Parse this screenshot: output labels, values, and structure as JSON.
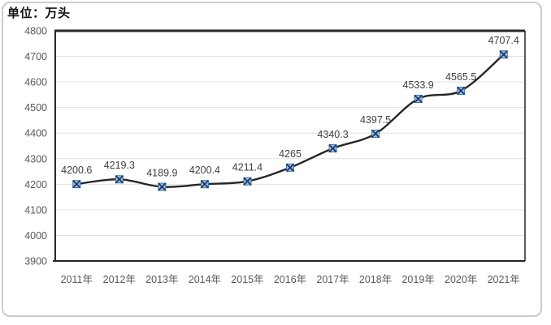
{
  "unit_label": "单位：万头",
  "frame": {
    "border_color": "#cccccc",
    "background": "#ffffff"
  },
  "chart_data": {
    "type": "line",
    "title": "单位：万头",
    "categories": [
      "2011年",
      "2012年",
      "2013年",
      "2014年",
      "2015年",
      "2016年",
      "2017年",
      "2018年",
      "2019年",
      "2020年",
      "2021年"
    ],
    "values": [
      4200.6,
      4219.3,
      4189.9,
      4200.4,
      4211.4,
      4265,
      4340.3,
      4397.5,
      4533.9,
      4565.5,
      4707.4
    ],
    "data_labels": [
      "4200.6",
      "4219.3",
      "4189.9",
      "4200.4",
      "4211.4",
      "4265",
      "4340.3",
      "4397.5",
      "4533.9",
      "4565.5",
      "4707.4"
    ],
    "xlabel": "",
    "ylabel": "",
    "ylim": [
      3900,
      4800
    ],
    "yticks": [
      3900,
      4000,
      4100,
      4200,
      4300,
      4400,
      4500,
      4600,
      4700,
      4800
    ],
    "grid": true,
    "legend": "none",
    "smooth": true,
    "styles": {
      "line_color": "#262626",
      "marker_fill": "#9dc3e6",
      "marker_edge": "#41719c",
      "marker_x_color": "#1f3864",
      "grid_color": "#e0e0e0",
      "plot_border_color": "#262626",
      "tick_text_color": "#595959",
      "data_label_color": "#404040"
    }
  }
}
